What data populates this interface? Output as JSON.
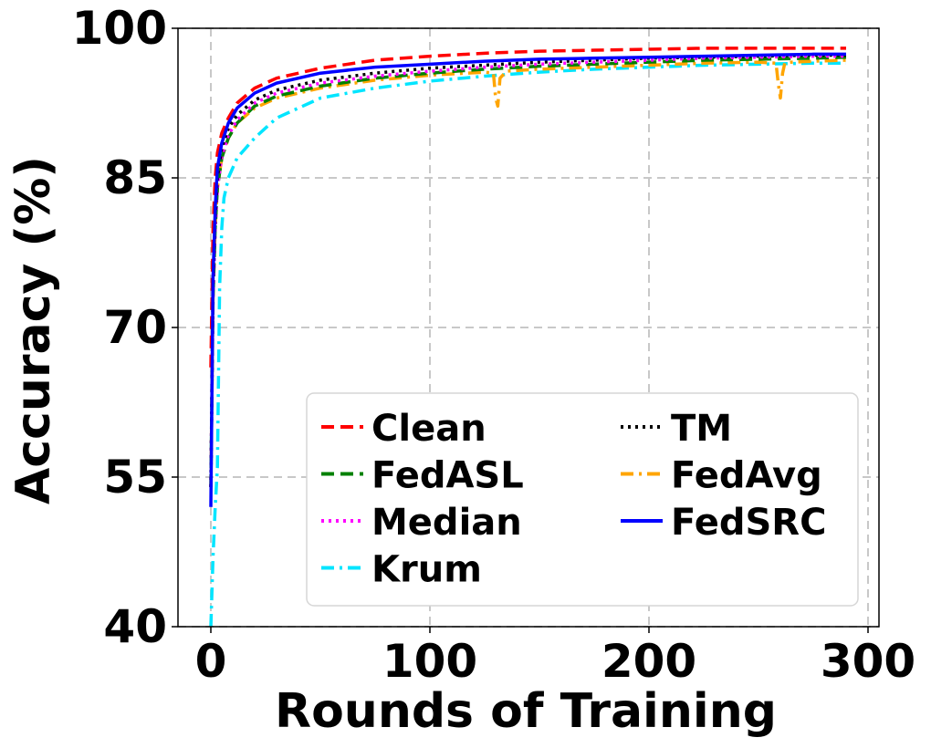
{
  "chart_data": {
    "type": "line",
    "xlabel": "Rounds of Training",
    "ylabel": "Accuracy (%)",
    "xlim": [
      -15,
      305
    ],
    "ylim": [
      40,
      100
    ],
    "xticks": [
      0,
      100,
      200,
      300
    ],
    "yticks": [
      40,
      55,
      70,
      85,
      100
    ],
    "xtick_labels": [
      "0",
      "100",
      "200",
      "300"
    ],
    "ytick_labels": [
      "40",
      "55",
      "70",
      "85",
      "100"
    ],
    "grid": true,
    "legend_position": "lower-right",
    "legend_columns": 2,
    "series": [
      {
        "name": "Clean",
        "color": "#ff0000",
        "style": "dashed",
        "x": [
          0,
          1,
          2,
          3,
          5,
          8,
          12,
          20,
          30,
          50,
          75,
          100,
          125,
          150,
          175,
          200,
          225,
          250,
          275,
          290
        ],
        "y": [
          66,
          80,
          85,
          87.5,
          89.5,
          91,
          92.5,
          94,
          95,
          96,
          96.8,
          97.2,
          97.5,
          97.7,
          97.8,
          97.9,
          98,
          98,
          98,
          98
        ]
      },
      {
        "name": "FedASL",
        "color": "#008000",
        "style": "dashed",
        "x": [
          0,
          1,
          2,
          3,
          5,
          8,
          12,
          20,
          30,
          50,
          75,
          100,
          125,
          150,
          175,
          200,
          225,
          250,
          275,
          290
        ],
        "y": [
          54,
          73,
          80,
          84,
          87,
          89,
          90.5,
          92.2,
          93.2,
          94.2,
          95,
          95.5,
          95.9,
          96.2,
          96.4,
          96.6,
          96.8,
          96.9,
          97,
          97.1
        ]
      },
      {
        "name": "Median",
        "color": "#ff00ff",
        "style": "dotted",
        "x": [
          0,
          1,
          2,
          3,
          5,
          8,
          12,
          20,
          30,
          50,
          75,
          100,
          125,
          150,
          175,
          200,
          225,
          250,
          275,
          290
        ],
        "y": [
          54,
          73,
          80,
          84,
          87.2,
          89.3,
          90.8,
          92.5,
          93.5,
          94.5,
          95.2,
          95.7,
          96.1,
          96.4,
          96.6,
          96.8,
          97,
          97.1,
          97.2,
          97.2
        ]
      },
      {
        "name": "Krum",
        "color": "#00e5ff",
        "style": "dashdot",
        "x": [
          0,
          1,
          2,
          3,
          4,
          5,
          6,
          8,
          12,
          20,
          30,
          50,
          75,
          100,
          125,
          150,
          175,
          200,
          225,
          250,
          275,
          290
        ],
        "y": [
          40,
          47,
          52,
          56,
          74,
          80,
          83,
          85,
          87,
          89,
          91,
          93,
          94,
          94.7,
          95.2,
          95.6,
          95.9,
          96.1,
          96.3,
          96.4,
          96.5,
          96.5
        ]
      },
      {
        "name": "TM",
        "color": "#000000",
        "style": "dotted",
        "x": [
          0,
          1,
          2,
          3,
          5,
          8,
          12,
          20,
          30,
          50,
          75,
          100,
          125,
          150,
          175,
          200,
          225,
          250,
          275,
          290
        ],
        "y": [
          54,
          74,
          81,
          85,
          88,
          90,
          91.3,
          92.8,
          93.8,
          94.8,
          95.5,
          96,
          96.3,
          96.6,
          96.8,
          97,
          97.1,
          97.2,
          97.3,
          97.3
        ]
      },
      {
        "name": "FedAvg",
        "color": "#ffa500",
        "style": "dashdot",
        "x": [
          0,
          1,
          2,
          3,
          5,
          8,
          12,
          20,
          30,
          50,
          75,
          100,
          125,
          129,
          130,
          131,
          132,
          135,
          150,
          175,
          200,
          225,
          250,
          258,
          259,
          260,
          261,
          262,
          265,
          275,
          290
        ],
        "y": [
          54,
          73,
          80,
          84,
          87,
          89,
          90.5,
          92,
          93,
          94,
          94.8,
          95.3,
          95.6,
          95.5,
          93,
          92.2,
          95,
          95.7,
          95.9,
          96.1,
          96.3,
          96.5,
          96.6,
          96.5,
          94.5,
          93,
          95.5,
          96.5,
          96.6,
          96.7,
          96.8
        ]
      },
      {
        "name": "FedSRC",
        "color": "#0000ff",
        "style": "solid",
        "x": [
          0,
          1,
          2,
          3,
          5,
          8,
          12,
          20,
          30,
          50,
          75,
          100,
          125,
          150,
          175,
          200,
          225,
          250,
          275,
          290
        ],
        "y": [
          52,
          75,
          82,
          86,
          88.5,
          90.5,
          92,
          93.5,
          94.5,
          95.5,
          96.1,
          96.4,
          96.7,
          96.9,
          97,
          97.1,
          97.2,
          97.3,
          97.4,
          97.4
        ]
      }
    ]
  }
}
